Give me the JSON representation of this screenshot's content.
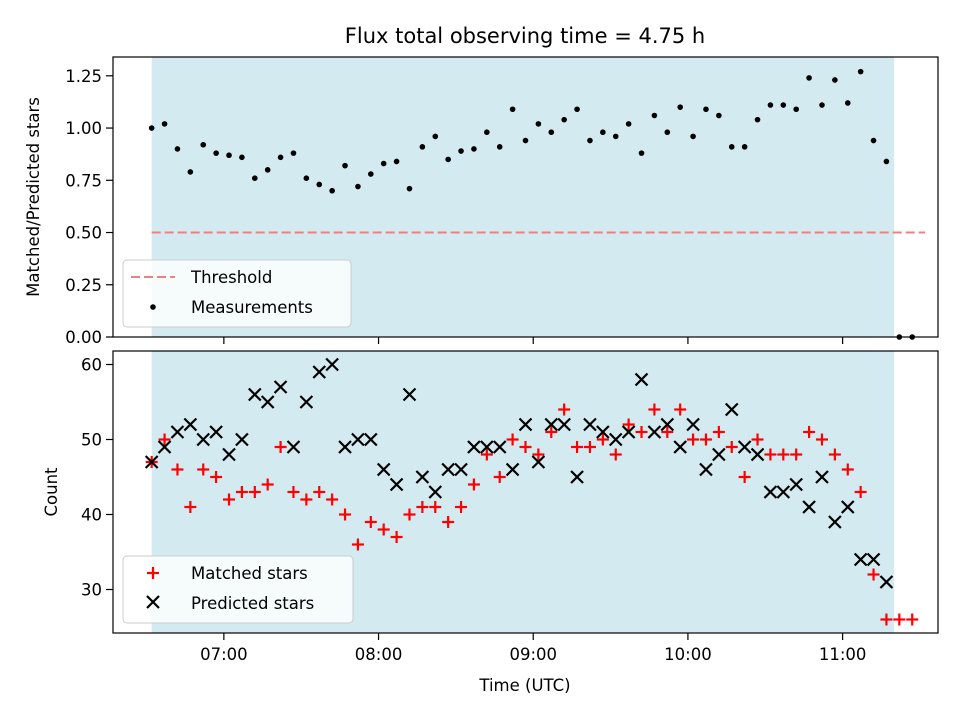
{
  "chart_data": [
    {
      "type": "scatter",
      "title": "Flux total observing time = 4.75 h",
      "ylabel": "Matched/Predicted stars",
      "xlabel": "",
      "ylim": [
        0.0,
        1.34
      ],
      "yticks": [
        0.0,
        0.25,
        0.5,
        0.75,
        1.0,
        1.25
      ],
      "ytick_labels": [
        "0.00",
        "0.25",
        "0.50",
        "0.75",
        "1.00",
        "1.25"
      ],
      "xlim": [
        "06:17",
        "11:37"
      ],
      "shaded_span": [
        "06:32",
        "11:20"
      ],
      "shaded_color": "#d3eaf0",
      "legend": "lower-left",
      "threshold": {
        "name": "Threshold",
        "y": 0.5,
        "x": [
          "06:32",
          "11:32"
        ],
        "color": "#f08080"
      },
      "series": [
        {
          "name": "Measurements",
          "color": "#000000",
          "x": [
            "06:32",
            "06:37",
            "06:42",
            "06:47",
            "06:52",
            "06:57",
            "07:02",
            "07:07",
            "07:12",
            "07:17",
            "07:22",
            "07:27",
            "07:32",
            "07:37",
            "07:42",
            "07:47",
            "07:52",
            "07:57",
            "08:02",
            "08:07",
            "08:12",
            "08:17",
            "08:22",
            "08:27",
            "08:32",
            "08:37",
            "08:42",
            "08:47",
            "08:52",
            "08:57",
            "09:02",
            "09:07",
            "09:12",
            "09:17",
            "09:22",
            "09:27",
            "09:32",
            "09:37",
            "09:42",
            "09:47",
            "09:52",
            "09:57",
            "10:02",
            "10:07",
            "10:12",
            "10:17",
            "10:22",
            "10:27",
            "10:32",
            "10:37",
            "10:42",
            "10:47",
            "10:52",
            "10:57",
            "11:02",
            "11:07",
            "11:12",
            "11:17",
            "11:22",
            "11:27"
          ],
          "y": [
            1.0,
            1.02,
            0.9,
            0.79,
            0.92,
            0.88,
            0.87,
            0.86,
            0.76,
            0.8,
            0.86,
            0.88,
            0.76,
            0.73,
            0.7,
            0.82,
            0.72,
            0.78,
            0.83,
            0.84,
            0.71,
            0.91,
            0.96,
            0.85,
            0.89,
            0.9,
            0.98,
            0.91,
            1.09,
            0.94,
            1.02,
            0.98,
            1.04,
            1.09,
            0.94,
            0.98,
            0.96,
            1.02,
            0.88,
            1.06,
            0.98,
            1.1,
            0.96,
            1.09,
            1.06,
            0.91,
            0.91,
            1.04,
            1.11,
            1.11,
            1.09,
            1.24,
            1.11,
            1.23,
            1.12,
            1.27,
            0.94,
            0.84,
            0.0,
            0.0
          ]
        }
      ]
    },
    {
      "type": "scatter",
      "title": "",
      "ylabel": "Count",
      "xlabel": "Time (UTC)",
      "ylim": [
        24.2,
        61.8
      ],
      "yticks": [
        30,
        40,
        50,
        60
      ],
      "ytick_labels": [
        "30",
        "40",
        "50",
        "60"
      ],
      "xlim": [
        "06:17",
        "11:37"
      ],
      "xticks": [
        "07:00",
        "08:00",
        "09:00",
        "10:00",
        "11:00"
      ],
      "xtick_labels": [
        "07:00",
        "08:00",
        "09:00",
        "10:00",
        "11:00"
      ],
      "shaded_span": [
        "06:32",
        "11:20"
      ],
      "shaded_color": "#d3eaf0",
      "legend": "lower-left",
      "series": [
        {
          "name": "Matched stars",
          "marker": "plus",
          "color": "#ff0000",
          "x": [
            "06:32",
            "06:37",
            "06:42",
            "06:47",
            "06:52",
            "06:57",
            "07:02",
            "07:07",
            "07:12",
            "07:17",
            "07:22",
            "07:27",
            "07:32",
            "07:37",
            "07:42",
            "07:47",
            "07:52",
            "07:57",
            "08:02",
            "08:07",
            "08:12",
            "08:17",
            "08:22",
            "08:27",
            "08:32",
            "08:37",
            "08:42",
            "08:47",
            "08:52",
            "08:57",
            "09:02",
            "09:07",
            "09:12",
            "09:17",
            "09:22",
            "09:27",
            "09:32",
            "09:37",
            "09:42",
            "09:47",
            "09:52",
            "09:57",
            "10:02",
            "10:07",
            "10:12",
            "10:17",
            "10:22",
            "10:27",
            "10:32",
            "10:37",
            "10:42",
            "10:47",
            "10:52",
            "10:57",
            "11:02",
            "11:07",
            "11:12",
            "11:17",
            "11:22",
            "11:27"
          ],
          "y": [
            47,
            50,
            46,
            41,
            46,
            45,
            42,
            43,
            43,
            44,
            49,
            43,
            42,
            43,
            42,
            40,
            36,
            39,
            38,
            37,
            40,
            41,
            41,
            39,
            41,
            44,
            48,
            45,
            50,
            49,
            48,
            51,
            54,
            49,
            49,
            50,
            48,
            52,
            51,
            54,
            51,
            54,
            50,
            50,
            51,
            49,
            45,
            50,
            48,
            48,
            48,
            51,
            50,
            48,
            46,
            43,
            32,
            26,
            26,
            26
          ]
        },
        {
          "name": "Predicted stars",
          "marker": "x",
          "color": "#000000",
          "x": [
            "06:32",
            "06:37",
            "06:42",
            "06:47",
            "06:52",
            "06:57",
            "07:02",
            "07:07",
            "07:12",
            "07:17",
            "07:22",
            "07:27",
            "07:32",
            "07:37",
            "07:42",
            "07:47",
            "07:52",
            "07:57",
            "08:02",
            "08:07",
            "08:12",
            "08:17",
            "08:22",
            "08:27",
            "08:32",
            "08:37",
            "08:42",
            "08:47",
            "08:52",
            "08:57",
            "09:02",
            "09:07",
            "09:12",
            "09:17",
            "09:22",
            "09:27",
            "09:32",
            "09:37",
            "09:42",
            "09:47",
            "09:52",
            "09:57",
            "10:02",
            "10:07",
            "10:12",
            "10:17",
            "10:22",
            "10:27",
            "10:32",
            "10:37",
            "10:42",
            "10:47",
            "10:52",
            "10:57",
            "11:02",
            "11:07",
            "11:12",
            "11:17",
            "11:22"
          ],
          "y": [
            47,
            49,
            51,
            52,
            50,
            51,
            48,
            50,
            56,
            55,
            57,
            49,
            55,
            59,
            60,
            49,
            50,
            50,
            46,
            44,
            56,
            45,
            43,
            46,
            46,
            49,
            49,
            49,
            46,
            52,
            47,
            52,
            52,
            45,
            52,
            51,
            50,
            51,
            58,
            51,
            52,
            49,
            52,
            46,
            48,
            54,
            49,
            48,
            43,
            43,
            44,
            41,
            45,
            39,
            41,
            34,
            34,
            31,
            null
          ]
        }
      ]
    }
  ]
}
